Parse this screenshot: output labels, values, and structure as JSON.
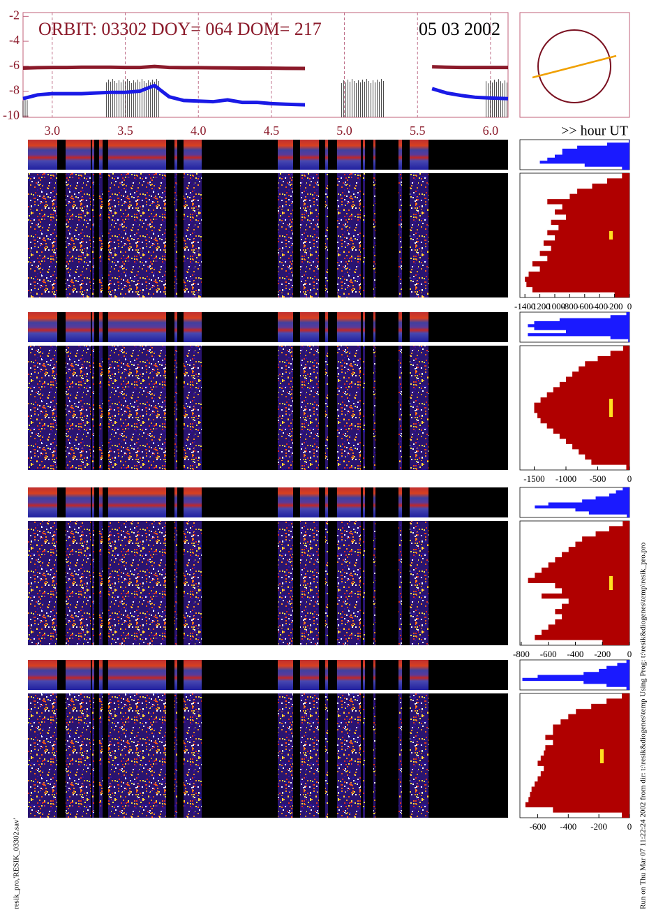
{
  "chart_data": [
    {
      "type": "line",
      "title": "ORBIT: 03302 DOY=  064 DOM=  217",
      "subtitle": "05 03 2002",
      "x_label": ">> hour UT",
      "x": [
        2.8,
        2.9,
        3.0,
        3.1,
        3.2,
        3.3,
        3.4,
        3.5,
        3.6,
        3.7,
        3.8,
        3.9,
        4.0,
        4.1,
        4.2,
        4.3,
        4.4,
        4.5,
        4.6,
        4.73,
        5.0,
        5.6,
        5.7,
        5.8,
        5.9,
        6.0,
        6.12
      ],
      "series": [
        {
          "color": "#8b1a2a",
          "values": [
            -6.15,
            -6.12,
            -6.1,
            -6.1,
            -6.08,
            -6.08,
            -6.08,
            -6.1,
            -6.1,
            -6.02,
            -6.1,
            -6.12,
            -6.12,
            -6.13,
            -6.14,
            -6.15,
            -6.15,
            -6.16,
            -6.17,
            -6.18,
            null,
            -6.05,
            -6.08,
            -6.1,
            -6.1,
            -6.1,
            -6.1
          ]
        },
        {
          "color": "#1a1ae6",
          "values": [
            -8.6,
            -8.3,
            -8.2,
            -8.2,
            -8.2,
            -8.15,
            -8.1,
            -8.1,
            -8.0,
            -7.55,
            -8.45,
            -8.75,
            -8.8,
            -8.85,
            -8.7,
            -8.9,
            -8.9,
            -9.0,
            -9.05,
            -9.1,
            null,
            -7.8,
            -8.15,
            -8.35,
            -8.5,
            -8.55,
            -8.6
          ]
        }
      ],
      "spike_blocks": [
        {
          "x": [
            3.37,
            3.73
          ],
          "top": -7
        },
        {
          "x": [
            4.98,
            5.27
          ],
          "top": -7
        },
        {
          "x": [
            5.97,
            6.12
          ],
          "top": -7
        },
        {
          "x": [
            2.8,
            2.84
          ],
          "top": -8.5
        }
      ],
      "xlim": [
        2.8,
        6.12
      ],
      "ylim": [
        -10.1,
        -1.7
      ],
      "xticks": [
        {
          "value": 3,
          "label": "3.0"
        },
        3.5,
        {
          "value": 4,
          "label": "4.0"
        },
        4.5,
        {
          "value": 5,
          "label": "5.0"
        },
        5.5,
        {
          "value": 6,
          "label": "6.0"
        }
      ],
      "yticks": [
        -2,
        -4,
        -6,
        -8,
        -10
      ],
      "grid": true
    },
    {
      "type": "area",
      "orientation": "horizontal",
      "series": [
        {
          "color": "#1a1aff",
          "values": [
            -10,
            -300,
            -700,
            -900,
            -900,
            -1000,
            -1100,
            -1200,
            -600,
            -100
          ]
        },
        {
          "color": "#b00000",
          "values": [
            -100,
            -300,
            -500,
            -700,
            -800,
            -1100,
            -900,
            -1000,
            -850,
            -1050,
            -950,
            -1100,
            -1000,
            -1150,
            -1050,
            -1200,
            -1100,
            -1300,
            -1200,
            -1350,
            -1400,
            -1380,
            -1300,
            -200
          ]
        }
      ],
      "xlim": [
        -1467,
        0
      ],
      "xticks": [
        -1400,
        -1200,
        -1000,
        -800,
        -600,
        -400,
        -200,
        0
      ]
    },
    {
      "type": "area",
      "orientation": "horizontal",
      "series": [
        {
          "color": "#1a1aff",
          "values": [
            -50,
            -300,
            -1100,
            -1500,
            -1600,
            -1500,
            -1000,
            -1600,
            -300,
            -20
          ]
        },
        {
          "color": "#b00000",
          "values": [
            -100,
            -300,
            -500,
            -700,
            -800,
            -900,
            -1000,
            -1100,
            -1200,
            -1300,
            -1400,
            -1500,
            -1500,
            -1450,
            -1400,
            -1300,
            -1200,
            -1100,
            -1000,
            -900,
            -800,
            -700,
            -600,
            -50
          ]
        }
      ],
      "xlim": [
        -1725,
        0
      ],
      "xticks": [
        -1500,
        -1000,
        -500,
        0
      ]
    },
    {
      "type": "area",
      "orientation": "horizontal",
      "series": [
        {
          "color": "#1a1aff",
          "values": [
            -50,
            -100,
            -150,
            -250,
            -350,
            -600,
            -700,
            -400,
            -300,
            -20
          ]
        },
        {
          "color": "#b00000",
          "values": [
            -50,
            -150,
            -250,
            -350,
            -400,
            -450,
            -500,
            -550,
            -600,
            -650,
            -700,
            -750,
            -550,
            -500,
            -650,
            -450,
            -500,
            -550,
            -500,
            -550,
            -600,
            -650,
            -700,
            -200
          ]
        }
      ],
      "xlim": [
        -810,
        0
      ],
      "xticks": [
        -800,
        -600,
        -400,
        -200,
        0
      ]
    },
    {
      "type": "area",
      "orientation": "horizontal",
      "series": [
        {
          "color": "#1a1aff",
          "values": [
            -20,
            -80,
            -150,
            -200,
            -300,
            -600,
            -700,
            -300,
            -150,
            -20
          ]
        },
        {
          "color": "#b00000",
          "values": [
            -50,
            -150,
            -250,
            -350,
            -400,
            -450,
            -500,
            -500,
            -550,
            -500,
            -550,
            -560,
            -580,
            -600,
            -560,
            -580,
            -600,
            -620,
            -640,
            -650,
            -660,
            -680,
            -500,
            -50
          ]
        }
      ],
      "xlim": [
        -716,
        0
      ],
      "xticks": [
        -600,
        -400,
        -200,
        0
      ]
    }
  ],
  "footer": {
    "left": "resik_pro,'RESIK_03302.sav'",
    "right": "Run on Thu Mar 07 11:22:24 2002  from dir: t:\\resik&diogenes\\temp Using Prog: t:\\resik&diogenes\\temp\\resik_pro.pro"
  }
}
